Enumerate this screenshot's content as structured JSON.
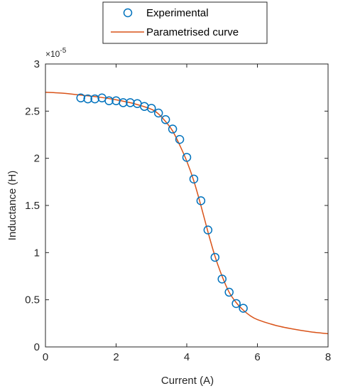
{
  "chart_data": {
    "type": "scatter",
    "xlabel": "Current (A)",
    "ylabel": "Inductance (H)",
    "y_multiplier": "×10",
    "y_exponent": "-5",
    "xlim": [
      0,
      8
    ],
    "ylim": [
      0,
      3
    ],
    "x_ticks": [
      0,
      2,
      4,
      6,
      8
    ],
    "y_ticks": [
      0,
      0.5,
      1,
      1.5,
      2,
      2.5,
      3
    ],
    "grid": false,
    "legend_position": "top-center",
    "series": [
      {
        "name": "Experimental",
        "kind": "marker",
        "marker": "circle",
        "color": "#0072BD",
        "x": [
          1.0,
          1.2,
          1.4,
          1.6,
          1.8,
          2.0,
          2.2,
          2.4,
          2.6,
          2.8,
          3.0,
          3.2,
          3.4,
          3.6,
          3.8,
          4.0,
          4.2,
          4.4,
          4.6,
          4.8,
          5.0,
          5.2,
          5.4,
          5.6
        ],
        "y": [
          2.64,
          2.63,
          2.63,
          2.64,
          2.61,
          2.61,
          2.59,
          2.59,
          2.58,
          2.55,
          2.53,
          2.48,
          2.41,
          2.31,
          2.2,
          2.01,
          1.78,
          1.55,
          1.24,
          0.95,
          0.72,
          0.58,
          0.46,
          0.41
        ]
      },
      {
        "name": "Parametrised curve",
        "kind": "line",
        "color": "#D95319",
        "x": [
          0,
          0.5,
          1.0,
          1.5,
          2.0,
          2.5,
          3.0,
          3.2,
          3.4,
          3.6,
          3.8,
          4.0,
          4.2,
          4.4,
          4.6,
          4.8,
          5.0,
          5.2,
          5.4,
          5.6,
          5.8,
          6.0,
          6.5,
          7.0,
          7.5,
          8.0
        ],
        "y": [
          2.7,
          2.69,
          2.67,
          2.65,
          2.62,
          2.58,
          2.52,
          2.47,
          2.39,
          2.29,
          2.14,
          1.97,
          1.76,
          1.5,
          1.22,
          0.96,
          0.75,
          0.58,
          0.47,
          0.39,
          0.33,
          0.29,
          0.23,
          0.19,
          0.16,
          0.14
        ]
      }
    ]
  }
}
